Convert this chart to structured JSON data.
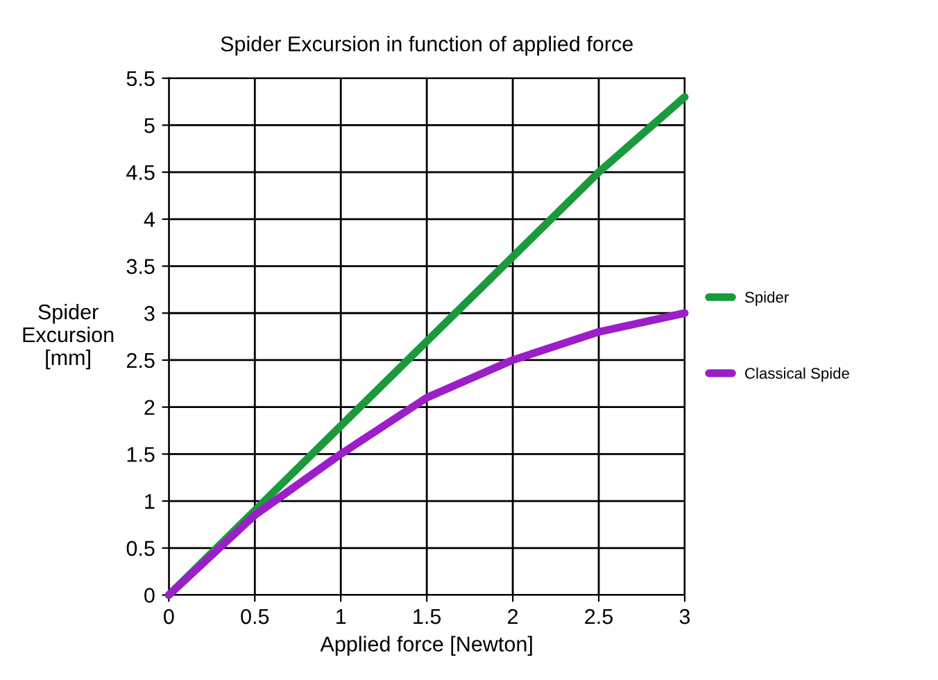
{
  "chart_data": {
    "type": "line",
    "title": "Spider Excursion in function of applied force",
    "xlabel": "Applied force [Newton]",
    "ylabel": "Spider\nExcursion\n[mm]",
    "x": [
      0,
      0.5,
      1,
      1.5,
      2,
      2.5,
      3
    ],
    "series": [
      {
        "name": "Spider",
        "color": "#1a9a3c",
        "values": [
          0,
          0.9,
          1.8,
          2.7,
          3.6,
          4.5,
          5.3
        ]
      },
      {
        "name": "Classical Spide",
        "color": "#9b1ec8",
        "values": [
          0,
          0.85,
          1.5,
          2.1,
          2.5,
          2.8,
          3.0
        ]
      }
    ],
    "xlim": [
      0,
      3
    ],
    "xticks": [
      0,
      0.5,
      1,
      1.5,
      2,
      2.5,
      3
    ],
    "ylim": [
      0,
      5.5
    ],
    "yticks": [
      0,
      0.5,
      1,
      1.5,
      2,
      2.5,
      3,
      3.5,
      4,
      4.5,
      5,
      5.5
    ],
    "grid": true,
    "legend": "right",
    "marker": "none",
    "line_style": "solid"
  }
}
